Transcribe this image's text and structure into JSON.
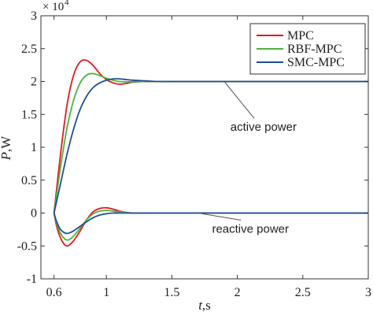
{
  "chart_data": {
    "type": "line",
    "xlabel_var": "t",
    "xlabel_unit": ",s",
    "ylabel_var": "P",
    "ylabel_unit": ",W",
    "y_multiplier_base": "× 10",
    "y_multiplier_exp": "4",
    "xlim": [
      0.5,
      3.0
    ],
    "ylim": [
      -1,
      3
    ],
    "x_ticks": [
      0.6,
      1,
      1.5,
      2,
      2.5,
      3
    ],
    "x_tick_labels": [
      "0.6",
      "1",
      "1.5",
      "2",
      "2.5",
      "3"
    ],
    "y_ticks": [
      -1,
      -0.5,
      0,
      0.5,
      1,
      1.5,
      2,
      2.5,
      3
    ],
    "y_tick_labels": [
      "-1",
      "-0.5",
      "0",
      "0.5",
      "1",
      "1.5",
      "2",
      "2.5",
      "3"
    ],
    "grid": false,
    "legend_position": "top-right",
    "series": [
      {
        "name": "MPC",
        "color": "#e31a1c",
        "active": {
          "x": [
            0.6,
            0.65,
            0.7,
            0.75,
            0.8,
            0.85,
            0.9,
            0.95,
            1.0,
            1.05,
            1.1,
            1.15,
            1.2,
            1.3,
            1.4,
            1.5,
            2.0,
            2.5,
            3.0
          ],
          "y": [
            0,
            0.9,
            1.65,
            2.1,
            2.3,
            2.32,
            2.24,
            2.12,
            2.03,
            1.98,
            1.96,
            1.97,
            1.99,
            2.0,
            2.0,
            2.0,
            2.0,
            2.0,
            2.0
          ]
        },
        "reactive": {
          "x": [
            0.6,
            0.62,
            0.65,
            0.68,
            0.7,
            0.72,
            0.75,
            0.8,
            0.85,
            0.9,
            0.95,
            1.0,
            1.05,
            1.1,
            1.15,
            1.2,
            1.3,
            1.5,
            2.0,
            3.0
          ],
          "y": [
            0,
            -0.2,
            -0.38,
            -0.48,
            -0.5,
            -0.48,
            -0.42,
            -0.27,
            -0.1,
            0.02,
            0.07,
            0.08,
            0.06,
            0.03,
            0.01,
            0.0,
            0.0,
            0.0,
            0.0,
            0.0
          ]
        }
      },
      {
        "name": "RBF-MPC",
        "color": "#4db33d",
        "active": {
          "x": [
            0.6,
            0.65,
            0.7,
            0.75,
            0.8,
            0.85,
            0.9,
            0.95,
            1.0,
            1.05,
            1.1,
            1.15,
            1.2,
            1.3,
            1.4,
            1.5,
            2.0,
            2.5,
            3.0
          ],
          "y": [
            0,
            0.7,
            1.3,
            1.72,
            1.98,
            2.1,
            2.12,
            2.09,
            2.05,
            2.02,
            2.0,
            1.995,
            1.995,
            2.0,
            2.0,
            2.0,
            2.0,
            2.0,
            2.0
          ]
        },
        "reactive": {
          "x": [
            0.6,
            0.62,
            0.65,
            0.68,
            0.7,
            0.72,
            0.75,
            0.8,
            0.85,
            0.9,
            0.95,
            1.0,
            1.05,
            1.1,
            1.15,
            1.2,
            1.3,
            1.5,
            2.0,
            3.0
          ],
          "y": [
            0,
            -0.16,
            -0.31,
            -0.39,
            -0.41,
            -0.4,
            -0.35,
            -0.23,
            -0.1,
            -0.01,
            0.03,
            0.04,
            0.03,
            0.02,
            0.01,
            0.0,
            0.0,
            0.0,
            0.0,
            0.0
          ]
        }
      },
      {
        "name": "SMC-MPC",
        "color": "#1f4e9c",
        "active": {
          "x": [
            0.6,
            0.65,
            0.7,
            0.75,
            0.8,
            0.85,
            0.9,
            0.95,
            1.0,
            1.05,
            1.1,
            1.15,
            1.2,
            1.3,
            1.4,
            1.5,
            2.0,
            2.5,
            3.0
          ],
          "y": [
            0,
            0.45,
            0.9,
            1.28,
            1.58,
            1.78,
            1.91,
            1.98,
            2.02,
            2.04,
            2.04,
            2.03,
            2.02,
            2.01,
            2.0,
            2.0,
            2.0,
            2.0,
            2.0
          ]
        },
        "reactive": {
          "x": [
            0.6,
            0.62,
            0.65,
            0.68,
            0.7,
            0.72,
            0.75,
            0.8,
            0.85,
            0.9,
            0.95,
            1.0,
            1.05,
            1.1,
            1.15,
            1.2,
            1.3,
            1.5,
            2.0,
            3.0
          ],
          "y": [
            0,
            -0.13,
            -0.25,
            -0.3,
            -0.31,
            -0.3,
            -0.27,
            -0.2,
            -0.13,
            -0.07,
            -0.03,
            -0.01,
            0.0,
            0.0,
            0.0,
            0.0,
            0.0,
            0.0,
            0.0,
            0.0
          ]
        }
      }
    ],
    "annotations": [
      {
        "text": "active power",
        "arrow_to": [
          1.9,
          2.0
        ],
        "text_at": [
          2.2,
          1.25
        ]
      },
      {
        "text": "reactive power",
        "arrow_to": [
          1.7,
          0.0
        ],
        "text_at": [
          2.1,
          -0.3
        ]
      }
    ]
  }
}
